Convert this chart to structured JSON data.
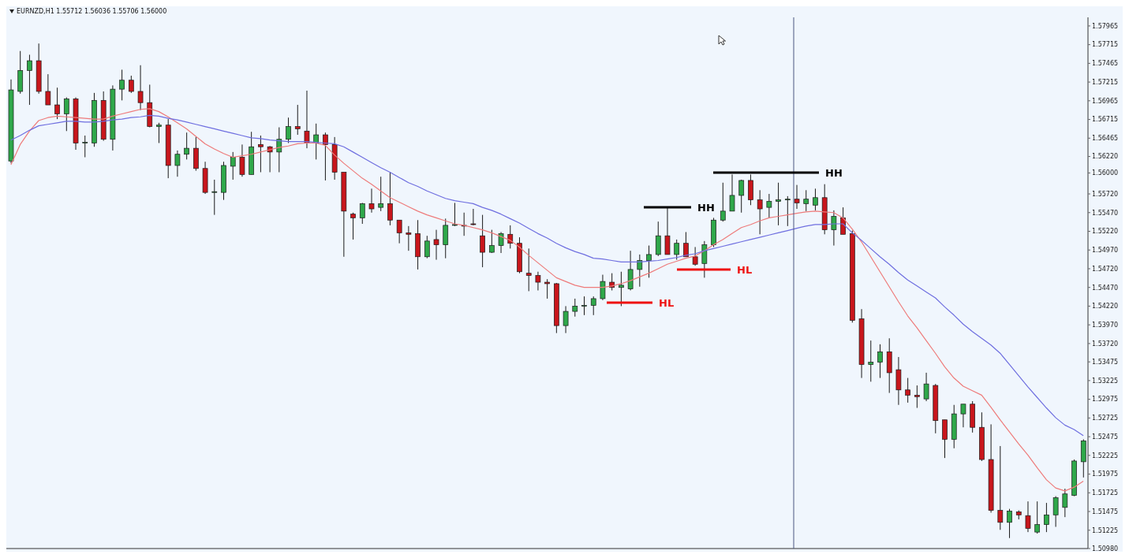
{
  "chart_data": {
    "type": "candlestick",
    "title": "EURNZD,H1 1.55712 1.56036 1.55706 1.56000",
    "categories": [
      null,
      null,
      null,
      null,
      null,
      null,
      null,
      null,
      null,
      null,
      null,
      null,
      null,
      null,
      null,
      null,
      null,
      null,
      null,
      null,
      null,
      null,
      null,
      null,
      null,
      null,
      null,
      null,
      null,
      null,
      null,
      null,
      null,
      null,
      null,
      null,
      null,
      null,
      null,
      null,
      null,
      null,
      null,
      null,
      null,
      null,
      null,
      null,
      null,
      null,
      null,
      null,
      null,
      null,
      null,
      null,
      null,
      null,
      null,
      null,
      null,
      null,
      null,
      null,
      null,
      null,
      null,
      null,
      null,
      null,
      null,
      null,
      null,
      null,
      null,
      null,
      null,
      null,
      null,
      null,
      null,
      null,
      null,
      null,
      null,
      null,
      null,
      null,
      null,
      null,
      null,
      null,
      null,
      null,
      null,
      null,
      null,
      null,
      null,
      null,
      null,
      null,
      null,
      null,
      null,
      null,
      null,
      null,
      null,
      null,
      null,
      null,
      null,
      null,
      null,
      null,
      null
    ],
    "ohlc": [
      [
        1.5616,
        1.5725,
        1.5613,
        1.5711
      ],
      [
        1.5709,
        1.5763,
        1.5706,
        1.5737
      ],
      [
        1.5737,
        1.5758,
        1.5691,
        1.575
      ],
      [
        1.575,
        1.5773,
        1.5706,
        1.5709
      ],
      [
        1.5709,
        1.5732,
        1.5691,
        1.5691
      ],
      [
        1.5691,
        1.5714,
        1.5672,
        1.5679
      ],
      [
        1.5679,
        1.5701,
        1.5656,
        1.5699
      ],
      [
        1.5699,
        1.5701,
        1.5631,
        1.564
      ],
      [
        1.564,
        1.565,
        1.5621,
        1.5641
      ],
      [
        1.564,
        1.5707,
        1.5635,
        1.5697
      ],
      [
        1.5697,
        1.5709,
        1.5643,
        1.5645
      ],
      [
        1.5645,
        1.5717,
        1.563,
        1.5712
      ],
      [
        1.5712,
        1.5738,
        1.5697,
        1.5724
      ],
      [
        1.5724,
        1.573,
        1.5707,
        1.5709
      ],
      [
        1.5709,
        1.5744,
        1.5684,
        1.5694
      ],
      [
        1.5694,
        1.5718,
        1.5661,
        1.5662
      ],
      [
        1.5662,
        1.5667,
        1.564,
        1.5664
      ],
      [
        1.5664,
        1.5672,
        1.5593,
        1.561
      ],
      [
        1.561,
        1.563,
        1.5595,
        1.5625
      ],
      [
        1.5625,
        1.5654,
        1.5618,
        1.5633
      ],
      [
        1.5633,
        1.5648,
        1.5603,
        1.5606
      ],
      [
        1.5606,
        1.5615,
        1.5572,
        1.5574
      ],
      [
        1.5574,
        1.5591,
        1.5544,
        1.5575
      ],
      [
        1.5574,
        1.5615,
        1.5564,
        1.561
      ],
      [
        1.5609,
        1.5628,
        1.5591,
        1.5621
      ],
      [
        1.5621,
        1.5638,
        1.5595,
        1.5598
      ],
      [
        1.5598,
        1.5655,
        1.5598,
        1.5635
      ],
      [
        1.5638,
        1.565,
        1.5601,
        1.5635
      ],
      [
        1.5635,
        1.5636,
        1.5601,
        1.5628
      ],
      [
        1.5628,
        1.5661,
        1.5601,
        1.5645
      ],
      [
        1.5645,
        1.5674,
        1.564,
        1.5662
      ],
      [
        1.5662,
        1.5691,
        1.5651,
        1.5659
      ],
      [
        1.5656,
        1.571,
        1.5633,
        1.564
      ],
      [
        1.564,
        1.5666,
        1.5618,
        1.5651
      ],
      [
        1.5651,
        1.5654,
        1.559,
        1.5638
      ],
      [
        1.5638,
        1.5648,
        1.5591,
        1.5601
      ],
      [
        1.5601,
        1.5601,
        1.5488,
        1.5549
      ],
      [
        1.5545,
        1.5547,
        1.5511,
        1.554
      ],
      [
        1.554,
        1.556,
        1.5532,
        1.5559
      ],
      [
        1.5559,
        1.5579,
        1.5547,
        1.5552
      ],
      [
        1.5554,
        1.5595,
        1.5549,
        1.5559
      ],
      [
        1.5559,
        1.5601,
        1.553,
        1.5537
      ],
      [
        1.5537,
        1.5537,
        1.5506,
        1.552
      ],
      [
        1.552,
        1.5529,
        1.5496,
        1.5518
      ],
      [
        1.5519,
        1.5537,
        1.5471,
        1.5488
      ],
      [
        1.5488,
        1.5516,
        1.5486,
        1.5509
      ],
      [
        1.5511,
        1.5524,
        1.5484,
        1.5504
      ],
      [
        1.5504,
        1.5539,
        1.5486,
        1.553
      ],
      [
        1.553,
        1.556,
        1.5529,
        1.5531
      ],
      [
        1.553,
        1.5547,
        1.5516,
        1.5529
      ],
      [
        1.5532,
        1.5552,
        1.553,
        1.5531
      ],
      [
        1.5516,
        1.5544,
        1.5474,
        1.5494
      ],
      [
        1.5494,
        1.5524,
        1.5493,
        1.5503
      ],
      [
        1.5503,
        1.5521,
        1.5493,
        1.5519
      ],
      [
        1.5518,
        1.553,
        1.5499,
        1.5506
      ],
      [
        1.5506,
        1.5514,
        1.5466,
        1.5468
      ],
      [
        1.5466,
        1.5499,
        1.5442,
        1.5463
      ],
      [
        1.5463,
        1.5468,
        1.5443,
        1.5454
      ],
      [
        1.5454,
        1.5458,
        1.5432,
        1.5452
      ],
      [
        1.5452,
        1.5453,
        1.5386,
        1.5396
      ],
      [
        1.5396,
        1.5422,
        1.5386,
        1.5415
      ],
      [
        1.5415,
        1.5432,
        1.5408,
        1.5422
      ],
      [
        1.5422,
        1.5435,
        1.541,
        1.5423
      ],
      [
        1.5423,
        1.5435,
        1.541,
        1.5432
      ],
      [
        1.5432,
        1.5464,
        1.543,
        1.5455
      ],
      [
        1.5454,
        1.5466,
        1.5443,
        1.5447
      ],
      [
        1.5447,
        1.5468,
        1.5422,
        1.545
      ],
      [
        1.5445,
        1.5496,
        1.5443,
        1.5471
      ],
      [
        1.5471,
        1.5491,
        1.5448,
        1.5483
      ],
      [
        1.5483,
        1.5503,
        1.546,
        1.5491
      ],
      [
        1.5491,
        1.5535,
        1.5489,
        1.5516
      ],
      [
        1.5516,
        1.5554,
        1.5491,
        1.5491
      ],
      [
        1.5491,
        1.5511,
        1.5484,
        1.5506
      ],
      [
        1.5506,
        1.5521,
        1.5488,
        1.5488
      ],
      [
        1.5488,
        1.5501,
        1.5476,
        1.5478
      ],
      [
        1.5479,
        1.5509,
        1.546,
        1.5504
      ],
      [
        1.5504,
        1.554,
        1.5501,
        1.5537
      ],
      [
        1.5537,
        1.5587,
        1.5535,
        1.5549
      ],
      [
        1.5549,
        1.5598,
        1.5549,
        1.557
      ],
      [
        1.557,
        1.5591,
        1.5547,
        1.559
      ],
      [
        1.559,
        1.5598,
        1.5557,
        1.5564
      ],
      [
        1.5564,
        1.5577,
        1.5518,
        1.5552
      ],
      [
        1.5554,
        1.5572,
        1.554,
        1.5562
      ],
      [
        1.5562,
        1.5587,
        1.553,
        1.5564
      ],
      [
        1.5564,
        1.5569,
        1.5529,
        1.5565
      ],
      [
        1.5565,
        1.5584,
        1.5552,
        1.556
      ],
      [
        1.5559,
        1.5577,
        1.5549,
        1.5565
      ],
      [
        1.5557,
        1.5579,
        1.555,
        1.5567
      ],
      [
        1.5567,
        1.5585,
        1.5518,
        1.5524
      ],
      [
        1.5524,
        1.555,
        1.5503,
        1.5542
      ],
      [
        1.554,
        1.5554,
        1.5518,
        1.5518
      ],
      [
        1.5519,
        1.5523,
        1.54,
        1.5403
      ],
      [
        1.5405,
        1.5418,
        1.5326,
        1.5344
      ],
      [
        1.5344,
        1.5376,
        1.5321,
        1.5347
      ],
      [
        1.5347,
        1.5371,
        1.5326,
        1.5361
      ],
      [
        1.5361,
        1.5379,
        1.5306,
        1.5333
      ],
      [
        1.5337,
        1.5354,
        1.529,
        1.531
      ],
      [
        1.531,
        1.5326,
        1.5293,
        1.5303
      ],
      [
        1.5303,
        1.5316,
        1.5286,
        1.5301
      ],
      [
        1.5298,
        1.5333,
        1.5295,
        1.5318
      ],
      [
        1.5316,
        1.5318,
        1.5252,
        1.5269
      ],
      [
        1.527,
        1.527,
        1.5219,
        1.5244
      ],
      [
        1.5244,
        1.529,
        1.5232,
        1.5278
      ],
      [
        1.5278,
        1.5291,
        1.526,
        1.5291
      ],
      [
        1.5291,
        1.5295,
        1.5253,
        1.526
      ],
      [
        1.526,
        1.528,
        1.5215,
        1.5217
      ],
      [
        1.5217,
        1.5264,
        1.5146,
        1.5149
      ],
      [
        1.5149,
        1.5235,
        1.5123,
        1.5133
      ],
      [
        1.5133,
        1.5151,
        1.5112,
        1.5148
      ],
      [
        1.5147,
        1.5149,
        1.5137,
        1.5143
      ],
      [
        1.5142,
        1.5161,
        1.512,
        1.5125
      ],
      [
        1.512,
        1.5161,
        1.5118,
        1.513
      ],
      [
        1.513,
        1.5159,
        1.512,
        1.5143
      ],
      [
        1.5143,
        1.5168,
        1.5127,
        1.5166
      ],
      [
        1.5153,
        1.5178,
        1.514,
        1.5171
      ],
      [
        1.5169,
        1.5217,
        1.5168,
        1.5215
      ],
      [
        1.5214,
        1.5244,
        1.5193,
        1.5242
      ]
    ],
    "series": [
      {
        "type": "line",
        "color": "#ee7b7b",
        "values": [
          1.5611,
          1.5638,
          1.5656,
          1.567,
          1.5674,
          1.5676,
          1.5675,
          1.5674,
          1.5673,
          1.5672,
          1.5672,
          1.5676,
          1.5679,
          1.5682,
          1.5685,
          1.5686,
          1.5682,
          1.5675,
          1.5667,
          1.5659,
          1.5649,
          1.5639,
          1.5632,
          1.5626,
          1.5621,
          1.5623,
          1.5625,
          1.5628,
          1.5631,
          1.5634,
          1.5636,
          1.5639,
          1.564,
          1.564,
          1.5637,
          1.5624,
          1.5613,
          1.5603,
          1.5593,
          1.5585,
          1.5576,
          1.5567,
          1.5561,
          1.5555,
          1.5549,
          1.5544,
          1.554,
          1.5536,
          1.5532,
          1.553,
          1.5527,
          1.5524,
          1.552,
          1.5515,
          1.551,
          1.5501,
          1.549,
          1.548,
          1.547,
          1.546,
          1.5455,
          1.545,
          1.5447,
          1.5447,
          1.5447,
          1.5449,
          1.5452,
          1.5456,
          1.5461,
          1.5466,
          1.5472,
          1.5478,
          1.5482,
          1.5486,
          1.5489,
          1.5496,
          1.5504,
          1.5511,
          1.5519,
          1.5527,
          1.5531,
          1.5536,
          1.554,
          1.5542,
          1.5544,
          1.5546,
          1.5548,
          1.5549,
          1.5548,
          1.5547,
          1.554,
          1.5525,
          1.5508,
          1.5488,
          1.5468,
          1.5448,
          1.5428,
          1.5409,
          1.5393,
          1.5376,
          1.5359,
          1.5341,
          1.5326,
          1.5315,
          1.5309,
          1.5303,
          1.5287,
          1.527,
          1.5254,
          1.5238,
          1.5223,
          1.5206,
          1.519,
          1.5179,
          1.5175,
          1.518,
          1.5188
        ]
      },
      {
        "type": "line",
        "color": "#6f6fe0",
        "values": [
          1.5644,
          1.565,
          1.5657,
          1.5663,
          1.5665,
          1.5667,
          1.5669,
          1.5669,
          1.5668,
          1.5668,
          1.5669,
          1.5671,
          1.5672,
          1.5674,
          1.5675,
          1.5677,
          1.5676,
          1.5673,
          1.5671,
          1.5668,
          1.5665,
          1.5662,
          1.5659,
          1.5656,
          1.5653,
          1.565,
          1.5647,
          1.5646,
          1.5644,
          1.5643,
          1.5642,
          1.5642,
          1.5642,
          1.5641,
          1.564,
          1.5639,
          1.5635,
          1.5628,
          1.5621,
          1.5614,
          1.5607,
          1.5601,
          1.5594,
          1.5587,
          1.5582,
          1.5576,
          1.5571,
          1.5566,
          1.5563,
          1.5561,
          1.5559,
          1.5554,
          1.555,
          1.5545,
          1.5539,
          1.5533,
          1.5526,
          1.5519,
          1.5513,
          1.5506,
          1.55,
          1.5495,
          1.5491,
          1.5486,
          1.5485,
          1.5483,
          1.5481,
          1.5481,
          1.5481,
          1.5482,
          1.5483,
          1.5485,
          1.5487,
          1.549,
          1.5492,
          1.5496,
          1.5499,
          1.5502,
          1.5505,
          1.5508,
          1.5511,
          1.5514,
          1.5517,
          1.552,
          1.5523,
          1.5526,
          1.5529,
          1.5531,
          1.5531,
          1.5532,
          1.5532,
          1.552,
          1.551,
          1.5499,
          1.5488,
          1.5478,
          1.5467,
          1.5457,
          1.5449,
          1.5441,
          1.5433,
          1.5421,
          1.541,
          1.5398,
          1.5388,
          1.5379,
          1.537,
          1.5359,
          1.5344,
          1.5329,
          1.5314,
          1.53,
          1.5286,
          1.5273,
          1.5263,
          1.5257,
          1.5249
        ]
      }
    ],
    "ylim": [
      1.5098,
      1.5808
    ],
    "yticks": [
      {
        "value": 1.57965,
        "label": "1.57965"
      },
      {
        "value": 1.57715,
        "label": "1.57715"
      },
      {
        "value": 1.57465,
        "label": "1.57465"
      },
      {
        "value": 1.57215,
        "label": "1.57215"
      },
      {
        "value": 1.56965,
        "label": "1.56965"
      },
      {
        "value": 1.56715,
        "label": "1.56715"
      },
      {
        "value": 1.56465,
        "label": "1.56465"
      },
      {
        "value": 1.5622,
        "label": "1.56220"
      },
      {
        "value": 1.56,
        "label": "1.56000"
      },
      {
        "value": 1.5572,
        "label": "1.55720"
      },
      {
        "value": 1.5547,
        "label": "1.55470"
      },
      {
        "value": 1.5522,
        "label": "1.55220"
      },
      {
        "value": 1.5497,
        "label": "1.54970"
      },
      {
        "value": 1.5472,
        "label": "1.54720"
      },
      {
        "value": 1.5447,
        "label": "1.54470"
      },
      {
        "value": 1.5422,
        "label": "1.54220"
      },
      {
        "value": 1.5397,
        "label": "1.53970"
      },
      {
        "value": 1.5372,
        "label": "1.53720"
      },
      {
        "value": 1.53475,
        "label": "1.53475"
      },
      {
        "value": 1.53225,
        "label": "1.53225"
      },
      {
        "value": 1.52975,
        "label": "1.52975"
      },
      {
        "value": 1.52725,
        "label": "1.52725"
      },
      {
        "value": 1.52475,
        "label": "1.52475"
      },
      {
        "value": 1.52225,
        "label": "1.52225"
      },
      {
        "value": 1.51975,
        "label": "1.51975"
      },
      {
        "value": 1.51725,
        "label": "1.51725"
      },
      {
        "value": 1.51475,
        "label": "1.51475"
      },
      {
        "value": 1.51225,
        "label": "1.51225"
      },
      {
        "value": 1.5098,
        "label": "1.50980"
      }
    ],
    "tick_labels": "y",
    "annotations": [
      "HH",
      "HH",
      "HL",
      "HL"
    ]
  }
}
